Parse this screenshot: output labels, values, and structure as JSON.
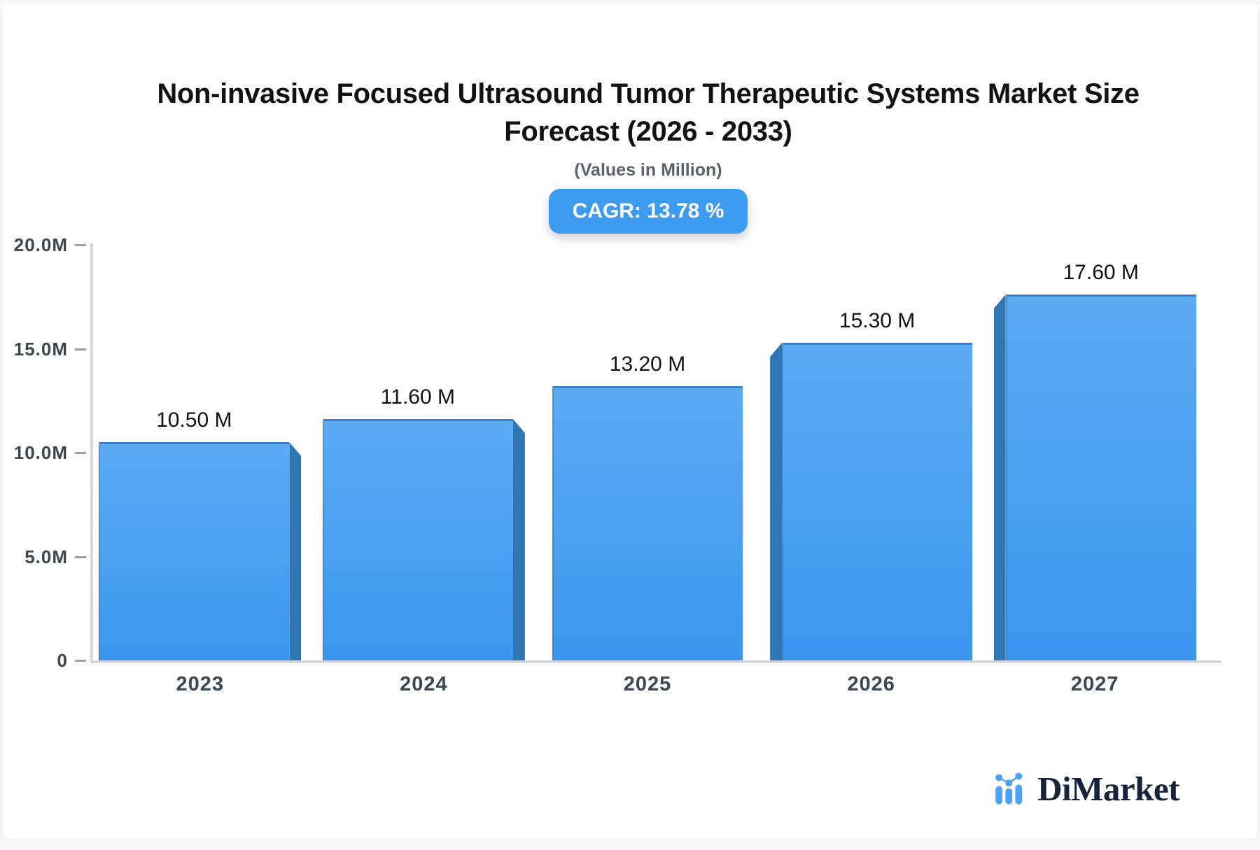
{
  "chart_data": {
    "type": "bar",
    "title_line1": "Non-invasive Focused Ultrasound Tumor Therapeutic Systems Market Size",
    "title_line2": "Forecast (2026 - 2033)",
    "subtitle": "(Values in Million)",
    "cagr_badge": "CAGR: 13.78 %",
    "categories": [
      "2023",
      "2024",
      "2025",
      "2026",
      "2027"
    ],
    "values": [
      10.5,
      11.6,
      13.2,
      15.3,
      17.6
    ],
    "value_labels": [
      "10.50 M",
      "11.60 M",
      "13.20 M",
      "15.30 M",
      "17.60 M"
    ],
    "yticks": [
      {
        "label": "20.0M",
        "value": 20
      },
      {
        "label": "15.0M",
        "value": 15
      },
      {
        "label": "10.0M",
        "value": 10
      },
      {
        "label": "5.0M",
        "value": 5
      },
      {
        "label": "0",
        "value": 0
      }
    ],
    "ylim": [
      0,
      20
    ],
    "legend": "none",
    "grid": "off",
    "colors": {
      "bar_gradient_top": "#5babf3",
      "bar_gradient_bottom": "#3b96f0",
      "bar_side": "#2f76b4",
      "bar_top_edge": "#3b7fc4",
      "axis": "#d4d5de",
      "tick": "#97a0ab",
      "axis_text": "#3c4653",
      "value_text": "#101214",
      "badge_bg": "#3d9cf2",
      "badge_text": "#ffffff"
    }
  },
  "footer": {
    "brand": "DiMarket"
  }
}
